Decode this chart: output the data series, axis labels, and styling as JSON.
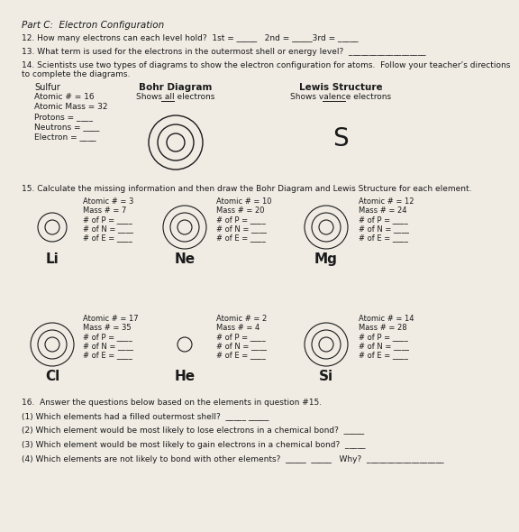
{
  "bg_color": "#f0ece4",
  "text_color": "#1a1a1a",
  "title": "Part C:  Electron Configuration",
  "q12": "12. How many electrons can each level hold?  1st = _____   2nd = _____3rd = _____",
  "q13": "13. What term is used for the electrons in the outermost shell or energy level?  ___________________",
  "q14_line1": "14. Scientists use two types of diagrams to show the electron configuration for atoms.  Follow your teacher’s directions",
  "q14_line2": "to complete the diagrams.",
  "sulfur_label": "Sulfur",
  "sulfur_lines": [
    "Atomic # = 16",
    "Atomic Mass = 32",
    "Protons = ____",
    "Neutrons = ____",
    "Electron = ____"
  ],
  "bohr_title": "Bohr Diagram",
  "bohr_sub_pre": "Shows ",
  "bohr_sub_ul": "all",
  "bohr_sub_post": " electrons",
  "lewis_title": "Lewis Structure",
  "lewis_sub_pre": "Shows ",
  "lewis_sub_ul": "valence",
  "lewis_sub_post": " electrons",
  "lewis_S": "S",
  "q15": "15. Calculate the missing information and then draw the Bohr Diagram and Lewis Structure for each element.",
  "elements_row1": [
    {
      "symbol": "Li",
      "info": [
        "Atomic # = 3",
        "Mass # = 7",
        "# of P = ____",
        "# of N = ____",
        "# of E = ____"
      ],
      "rings": 2
    },
    {
      "symbol": "Ne",
      "info": [
        "Atomic # = 10",
        "Mass # = 20",
        "# of P = ____",
        "# of N = ____",
        "# of E = ____"
      ],
      "rings": 3
    },
    {
      "symbol": "Mg",
      "info": [
        "Atomic # = 12",
        "Mass # = 24",
        "# of P = ____",
        "# of N = ____",
        "# of E = ____"
      ],
      "rings": 3
    }
  ],
  "elements_row2": [
    {
      "symbol": "Cl",
      "info": [
        "Atomic # = 17",
        "Mass # = 35",
        "# of P = ____",
        "# of N = ____",
        "# of E = ____"
      ],
      "rings": 3
    },
    {
      "symbol": "He",
      "info": [
        "Atomic # = 2",
        "Mass # = 4",
        "# of P = ____",
        "# of N = ____",
        "# of E = ____"
      ],
      "rings": 1
    },
    {
      "symbol": "Si",
      "info": [
        "Atomic # = 14",
        "Mass # = 28",
        "# of P = ____",
        "# of N = ____",
        "# of E = ____"
      ],
      "rings": 3
    }
  ],
  "q16": "16.  Answer the questions below based on the elements in question #15.",
  "q16_1": "(1) Which elements had a filled outermost shell?  _____ _____",
  "q16_2": "(2) Which element would be most likely to lose electrons in a chemical bond?  _____",
  "q16_3": "(3) Which element would be most likely to gain electrons in a chemical bond?  _____",
  "q16_4": "(4) Which elements are not likely to bond with other elements?  _____  _____   Why?  ___________________"
}
